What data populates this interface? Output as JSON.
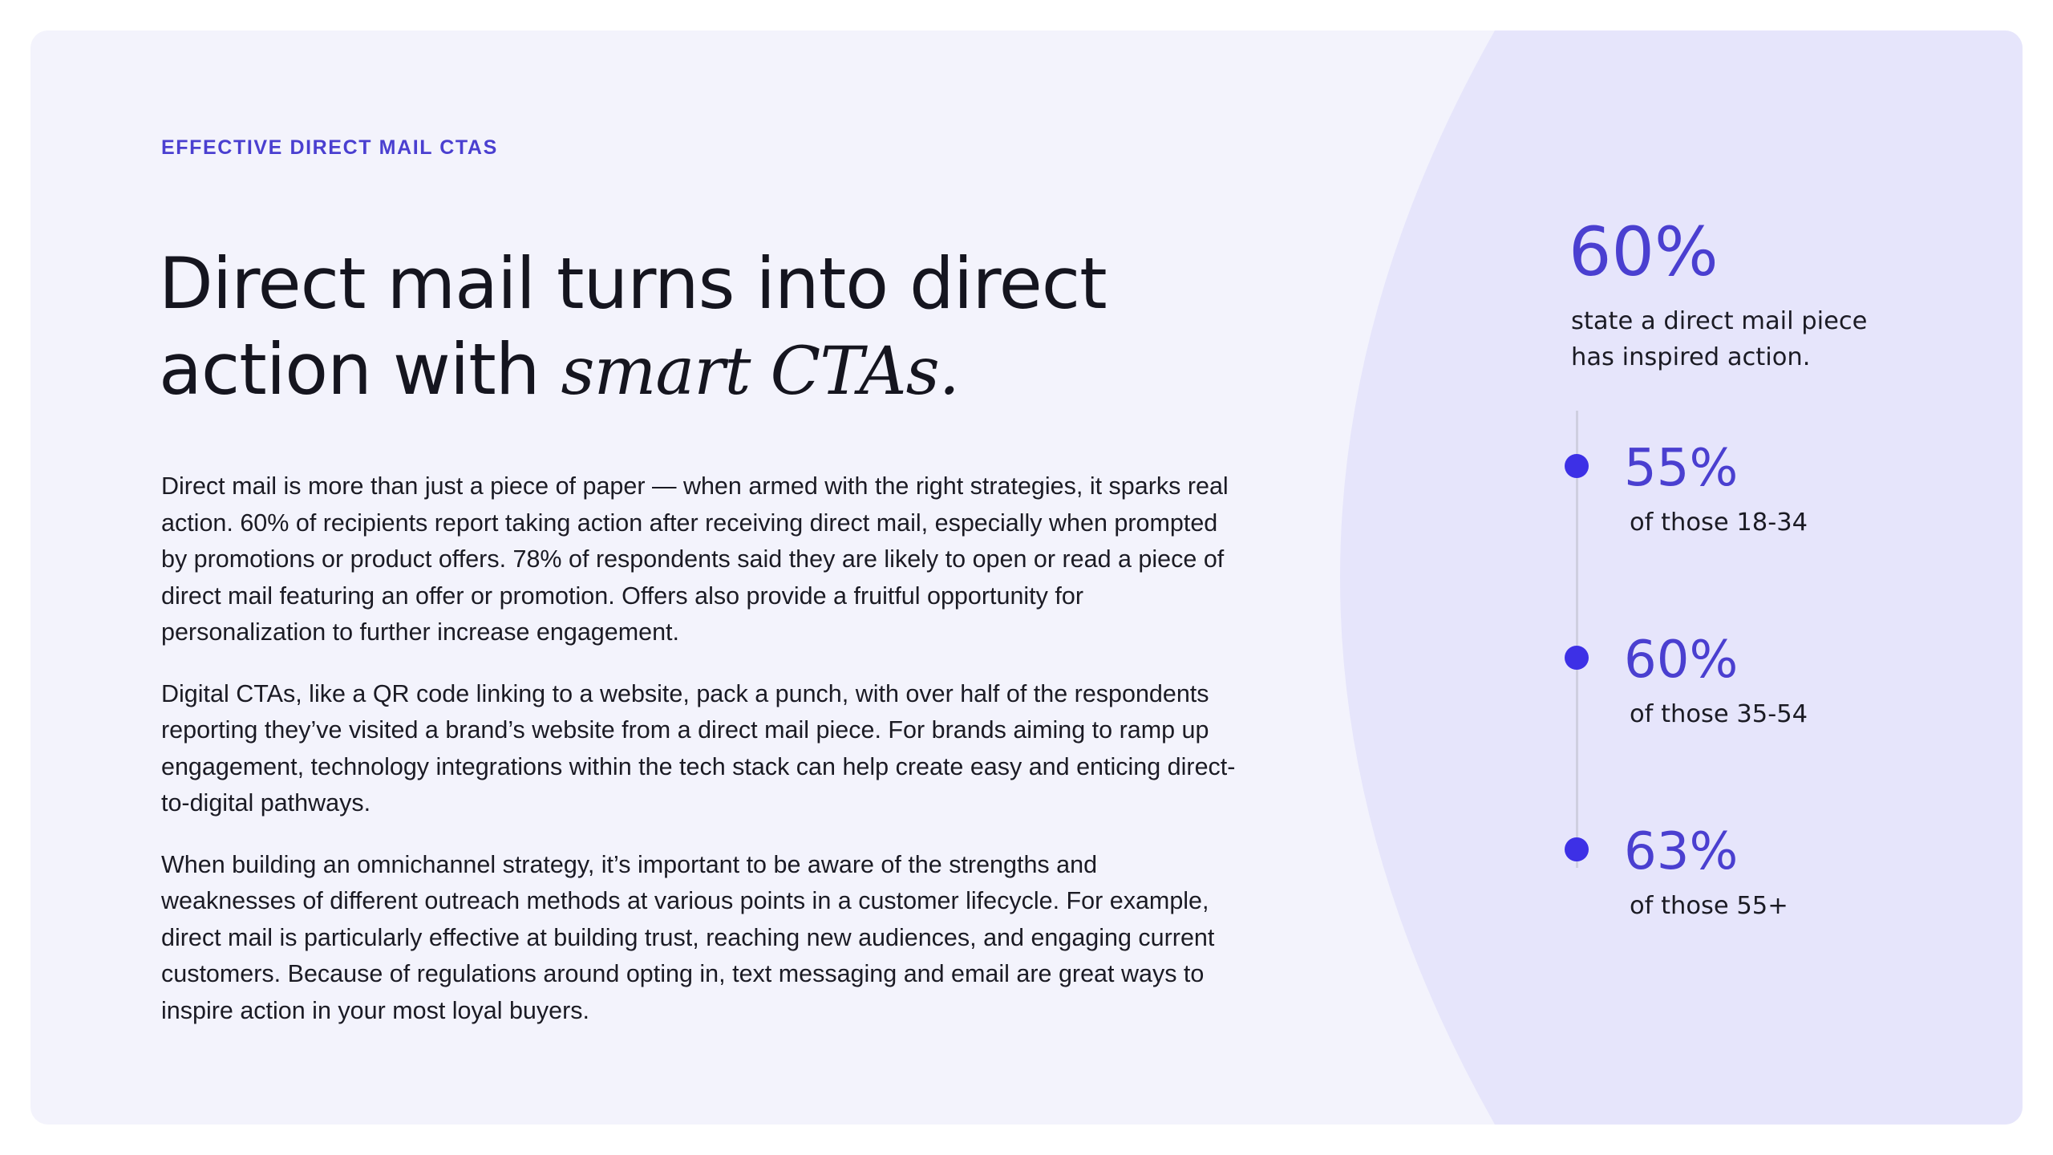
{
  "colors": {
    "page_background": "#ffffff",
    "card_background": "#f3f3fc",
    "arc_panel": "#e6e5fb",
    "accent_purple": "#4a3fd0",
    "dot_purple": "#3d30e6",
    "text": "#15151f",
    "timeline_line": "#cfcfe0"
  },
  "eyebrow": "EFFECTIVE DIRECT MAIL CTAS",
  "headline": {
    "line1": "Direct mail turns into direct",
    "line2_plain": "action with ",
    "line2_italic": "smart CTAs."
  },
  "body": {
    "paragraphs": [
      "Direct mail is more than just a piece of paper — when armed with the right strategies, it sparks real action. 60% of recipients report taking action after receiving direct mail, especially when prompted by promotions or product offers. 78% of respondents said they are likely to open or read a piece of direct mail featuring an offer or promotion. Offers also provide a fruitful opportunity for personalization to further increase engagement.",
      "Digital CTAs, like a QR code linking to a website, pack a punch, with over half of the respondents reporting they’ve visited a brand’s website from a direct mail piece. For brands aiming to ramp up engagement, technology integrations within the tech stack can help create easy and enticing direct-to-digital pathways.",
      "When building an omnichannel strategy, it’s important to be aware of the strengths and weaknesses of different outreach methods at various points in a customer lifecycle. For example, direct mail is particularly effective at building trust, reaching new audiences, and engaging current customers. Because of regulations around opting in, text messaging and email are great ways to inspire action in your most loyal buyers."
    ]
  },
  "stats": {
    "main": {
      "value": "60%",
      "caption_line1": "state a direct mail piece",
      "caption_line2": "has inspired action."
    },
    "breakdown": [
      {
        "value": "55%",
        "caption": "of those 18-34"
      },
      {
        "value": "60%",
        "caption": "of those 35-54"
      },
      {
        "value": "63%",
        "caption": "of those 55+"
      }
    ]
  }
}
